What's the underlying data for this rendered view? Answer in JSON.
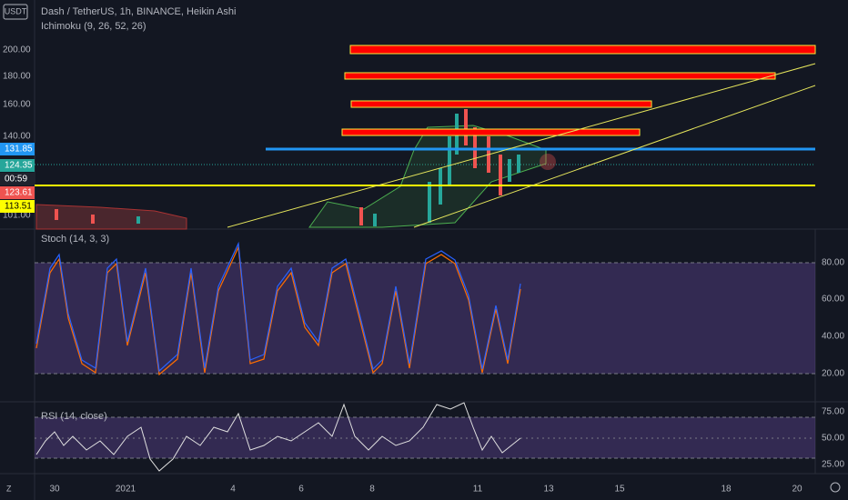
{
  "header": {
    "currency": "USDT",
    "symbol": "Dash / TetherUS, 1h, BINANCE, Heikin Ashi",
    "indicator": "Ichimoku (9, 26, 52, 26)"
  },
  "price_axis": {
    "labels": [
      "200.00",
      "180.00",
      "160.00",
      "140.00",
      "101.00"
    ],
    "tags": [
      "131.85",
      "124.35",
      "00:59",
      "123.61",
      "113.51"
    ]
  },
  "stoch_panel": {
    "label": "Stoch (14, 3, 3)",
    "axis_labels": [
      "80.00",
      "60.00",
      "40.00",
      "20.00"
    ]
  },
  "rsi_panel": {
    "label": "RSI (14, close)",
    "axis_labels": [
      "75.00",
      "50.00",
      "25.00"
    ]
  },
  "time_axis": {
    "labels": [
      "30",
      "2021",
      "4",
      "6",
      "8",
      "11",
      "13",
      "15",
      "18",
      "20"
    ],
    "zoom_button": "Z"
  }
}
